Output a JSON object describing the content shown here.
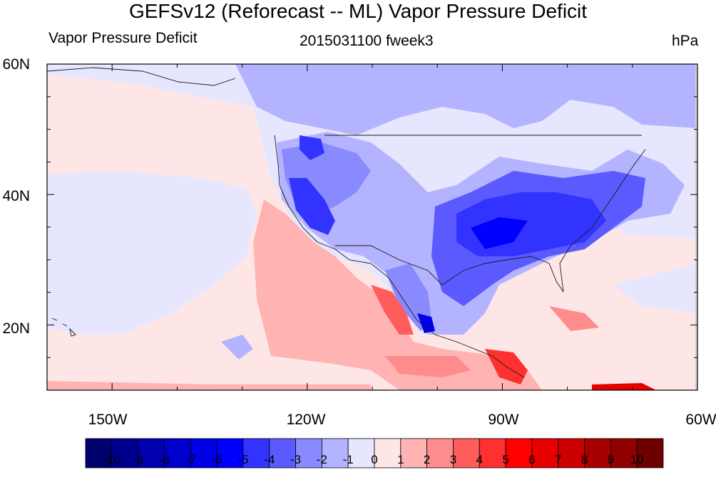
{
  "title": "GEFSv12 (Reforecast -- ML) Vapor Pressure Deficit",
  "left_string": "Vapor Pressure Deficit",
  "center_string": "2015031100 fweek3",
  "right_string": "hPa",
  "map": {
    "lat_range": [
      10,
      60
    ],
    "lon_range": [
      -160,
      -60
    ],
    "lat_ticks": [
      {
        "value": 60,
        "label": "60N"
      },
      {
        "value": 40,
        "label": "40N"
      },
      {
        "value": 20,
        "label": "20N"
      }
    ],
    "lon_ticks": [
      {
        "value": -150,
        "label": "150W"
      },
      {
        "value": -120,
        "label": "120W"
      },
      {
        "value": -90,
        "label": "90W"
      },
      {
        "value": -60,
        "label": "60W"
      }
    ]
  },
  "colorbar": {
    "labels": [
      "-10",
      "-9",
      "-8",
      "-7",
      "-6",
      "-5",
      "-4",
      "-3",
      "-2",
      "-1",
      "0",
      "1",
      "2",
      "3",
      "4",
      "5",
      "6",
      "7",
      "8",
      "9",
      "10"
    ],
    "colors": [
      "#00006e",
      "#000090",
      "#0000b0",
      "#0000cc",
      "#0000e6",
      "#0000ff",
      "#3333ff",
      "#5a5aff",
      "#8a8aff",
      "#b3b3ff",
      "#e6e6ff",
      "#ffe6e6",
      "#ffb3b3",
      "#ff8c8c",
      "#ff5c5c",
      "#ff3030",
      "#ff0000",
      "#e60000",
      "#cc0000",
      "#a80000",
      "#900000",
      "#6e0000"
    ]
  }
}
